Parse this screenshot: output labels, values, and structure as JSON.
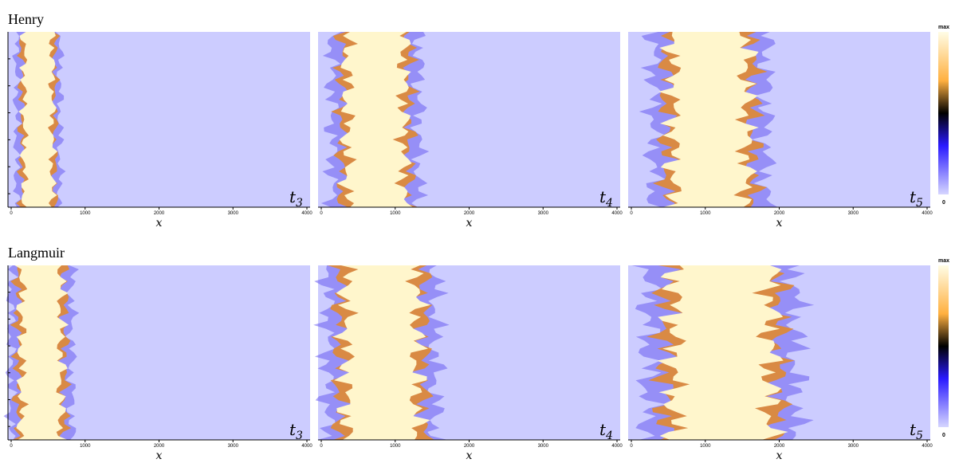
{
  "chart_data": [
    {
      "type": "heatmap",
      "title": "Henry",
      "time_labels": [
        {
          "symbol": "t",
          "sub": "3"
        },
        {
          "symbol": "t",
          "sub": "4"
        },
        {
          "symbol": "t",
          "sub": "5"
        }
      ],
      "xlabel": "x",
      "xlim": [
        0,
        4000
      ],
      "xticks": [
        0,
        1000,
        2000,
        3000,
        4000
      ],
      "colorbar_labels": [
        "max",
        "0"
      ]
    },
    {
      "type": "heatmap",
      "title": "Langmuir",
      "time_labels": [
        {
          "symbol": "t",
          "sub": "3"
        },
        {
          "symbol": "t",
          "sub": "4"
        },
        {
          "symbol": "t",
          "sub": "5"
        }
      ],
      "xlabel": "x",
      "xlim": [
        0,
        4000
      ],
      "xticks": [
        0,
        1000,
        2000,
        3000,
        4000
      ],
      "colorbar_labels": [
        "max",
        "0"
      ]
    }
  ]
}
